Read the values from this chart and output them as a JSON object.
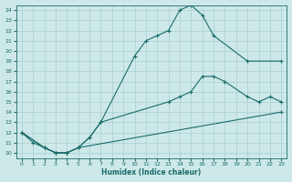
{
  "xlabel": "Humidex (Indice chaleur)",
  "background_color": "#cde8e8",
  "grid_color": "#aacfcf",
  "line_color": "#1a6b6b",
  "xlim": [
    -0.5,
    23.5
  ],
  "ylim": [
    9.5,
    24.5
  ],
  "xticks": [
    0,
    1,
    2,
    3,
    4,
    5,
    6,
    7,
    8,
    9,
    10,
    11,
    12,
    13,
    14,
    15,
    16,
    17,
    18,
    19,
    20,
    21,
    22,
    23
  ],
  "yticks": [
    10,
    11,
    12,
    13,
    14,
    15,
    16,
    17,
    18,
    19,
    20,
    21,
    22,
    23,
    24
  ],
  "line1_x": [
    0,
    1,
    2,
    3,
    4,
    5,
    6,
    7,
    10,
    11,
    12,
    13,
    14,
    15,
    16,
    17,
    20,
    23
  ],
  "line1_y": [
    12,
    11,
    10.5,
    10,
    10,
    10.5,
    11.5,
    13,
    19.5,
    21,
    21.5,
    22,
    24,
    24.5,
    23.5,
    21.5,
    19,
    19
  ],
  "line2_x": [
    0,
    2,
    3,
    4,
    5,
    6,
    7,
    13,
    14,
    15,
    16,
    17,
    18,
    20,
    21,
    22,
    23
  ],
  "line2_y": [
    12,
    10.5,
    10,
    10,
    10.5,
    11.5,
    13,
    15,
    15.5,
    16,
    17.5,
    17.5,
    17,
    15.5,
    15,
    15.5,
    15
  ],
  "line3_x": [
    0,
    2,
    3,
    4,
    5,
    23
  ],
  "line3_y": [
    12,
    10.5,
    10,
    10,
    10.5,
    14
  ]
}
